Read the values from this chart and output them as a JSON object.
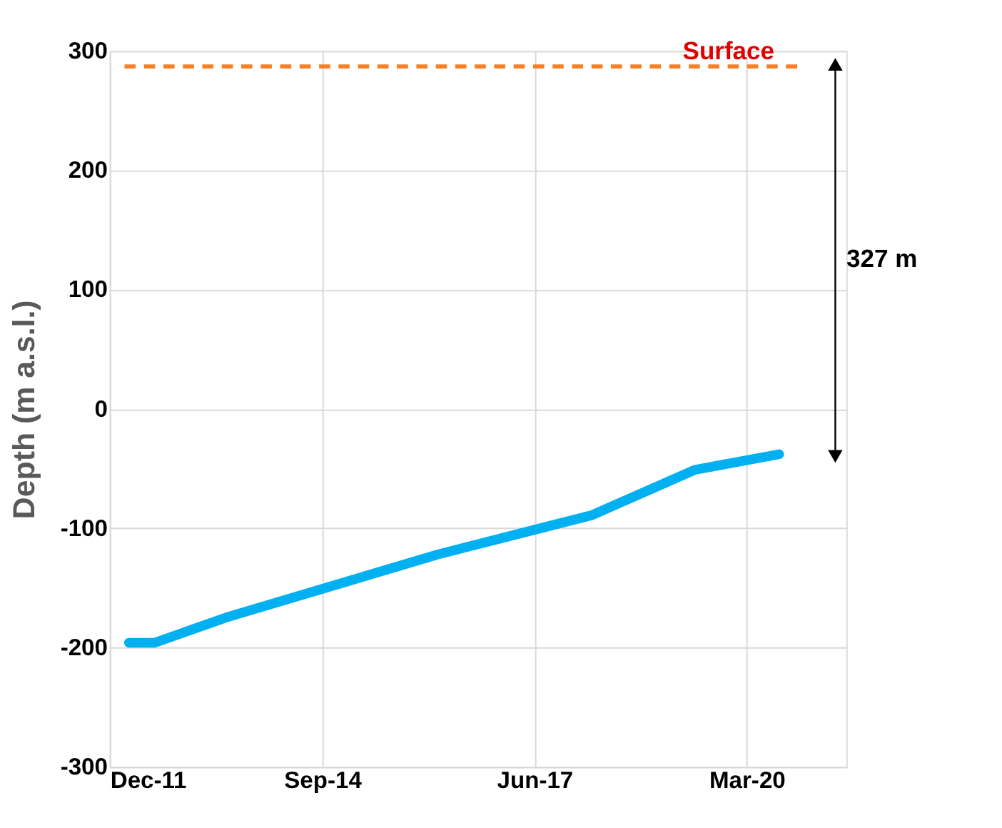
{
  "chart_data": {
    "type": "line",
    "ylabel": "Depth (m a.s.l.)",
    "x": [
      "2012-03",
      "2012-07",
      "2013-06",
      "2016-03",
      "2018-03",
      "2019-07",
      "2020-08"
    ],
    "series": [
      {
        "color": "#00b0f0",
        "values": [
          -196,
          -196,
          -175,
          -122,
          -89,
          -51,
          -38
        ]
      }
    ],
    "xlim": [
      "2011-12-01",
      "2021-06-15"
    ],
    "xticks": [
      {
        "value": "2011-12-01",
        "label": "Dec-11"
      },
      {
        "value": "2014-09-01",
        "label": "Sep-14"
      },
      {
        "value": "2017-06-01",
        "label": "Jun-17"
      },
      {
        "value": "2020-03-01",
        "label": "Mar-20"
      }
    ],
    "ylim": [
      -300,
      300
    ],
    "yticks": [
      -300,
      -200,
      -100,
      0,
      100,
      200,
      300
    ],
    "grid": true,
    "marker": "none",
    "line_style": "solid",
    "ref_lines": [
      {
        "axis": "y",
        "value": 287,
        "label": "Surface",
        "color": "#f58025",
        "line_style": "dashed"
      }
    ],
    "annotations": [
      "327 m"
    ]
  }
}
